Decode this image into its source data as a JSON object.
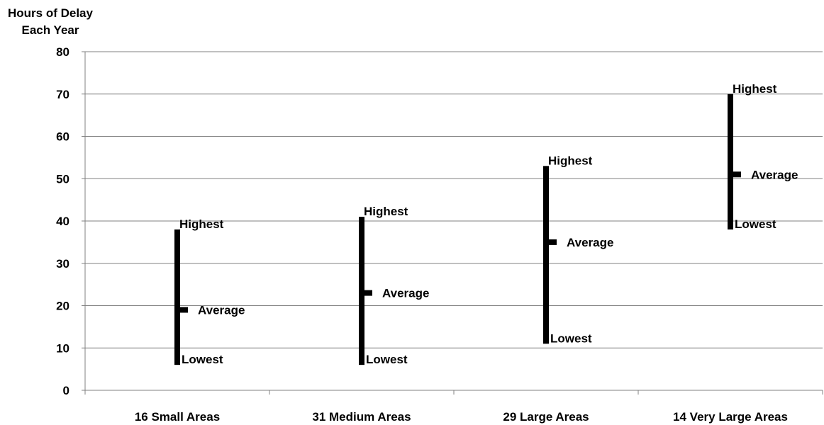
{
  "chart_data": {
    "type": "range",
    "title": "",
    "ylabel_lines": [
      "Hours of Delay",
      "Each Year"
    ],
    "xlabel": "",
    "ylim": [
      0,
      80
    ],
    "yticks": [
      0,
      10,
      20,
      30,
      40,
      50,
      60,
      70,
      80
    ],
    "grid": true,
    "categories": [
      "16 Small Areas",
      "31 Medium Areas",
      "29 Large Areas",
      "14 Very Large Areas"
    ],
    "series": [
      {
        "name": "Highest",
        "values": [
          38,
          41,
          53,
          70
        ]
      },
      {
        "name": "Average",
        "values": [
          19,
          23,
          35,
          51
        ]
      },
      {
        "name": "Lowest",
        "values": [
          6,
          6,
          11,
          38
        ]
      }
    ],
    "point_labels": {
      "high": "Highest",
      "avg": "Average",
      "low": "Lowest"
    }
  }
}
